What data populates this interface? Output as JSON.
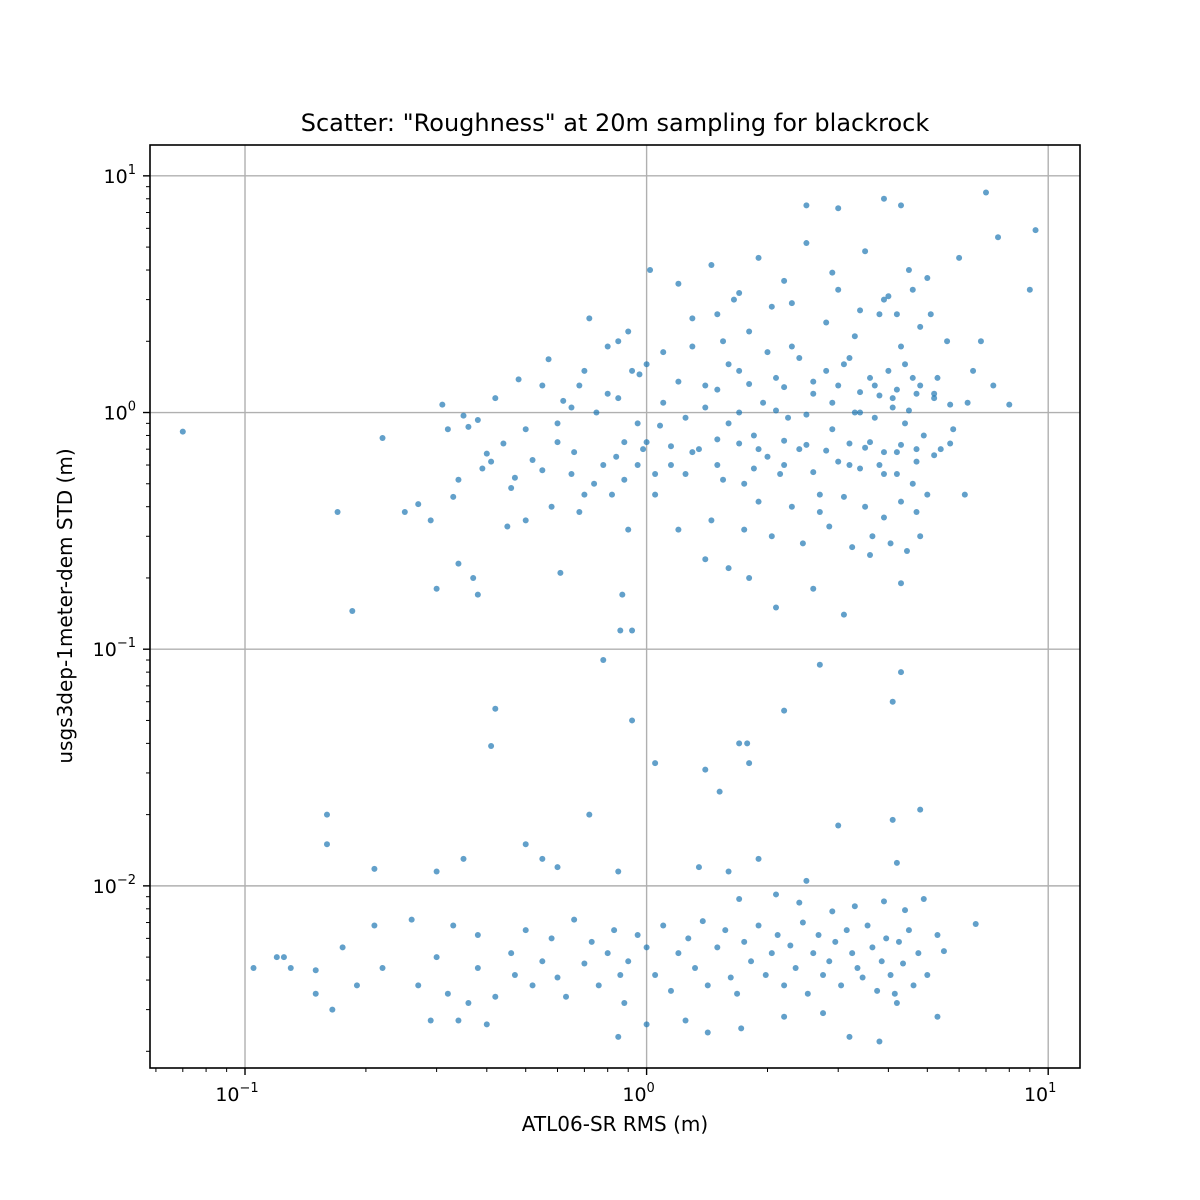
{
  "chart_data": {
    "type": "scatter",
    "title": "Scatter: \"Roughness\" at 20m sampling for blackrock",
    "xlabel": "ATL06-SR RMS (m)",
    "ylabel": "usgs3dep-1meter-dem STD (m)",
    "xscale": "log",
    "yscale": "log",
    "xlim": [
      0.058,
      12
    ],
    "ylim": [
      0.0017,
      13.5
    ],
    "grid": true,
    "marker_color": "#1f77b4",
    "x_ticks": [
      {
        "value": 0.1,
        "base": "10",
        "exp": "−1"
      },
      {
        "value": 1,
        "base": "10",
        "exp": "0"
      },
      {
        "value": 10,
        "base": "10",
        "exp": "1"
      }
    ],
    "y_ticks": [
      {
        "value": 0.01,
        "base": "10",
        "exp": "−2"
      },
      {
        "value": 0.1,
        "base": "10",
        "exp": "−1"
      },
      {
        "value": 1,
        "base": "10",
        "exp": "0"
      },
      {
        "value": 10,
        "base": "10",
        "exp": "1"
      }
    ],
    "points": [
      [
        0.07,
        0.83
      ],
      [
        0.17,
        0.38
      ],
      [
        0.185,
        0.145
      ],
      [
        0.22,
        0.78
      ],
      [
        0.25,
        0.38
      ],
      [
        0.27,
        0.41
      ],
      [
        0.29,
        0.35
      ],
      [
        0.31,
        1.08
      ],
      [
        0.32,
        0.85
      ],
      [
        0.33,
        0.44
      ],
      [
        0.34,
        0.52
      ],
      [
        0.35,
        0.97
      ],
      [
        0.36,
        0.87
      ],
      [
        0.38,
        0.93
      ],
      [
        0.39,
        0.58
      ],
      [
        0.4,
        0.67
      ],
      [
        0.41,
        0.62
      ],
      [
        0.42,
        1.15
      ],
      [
        0.44,
        0.74
      ],
      [
        0.46,
        0.48
      ],
      [
        0.48,
        1.38
      ],
      [
        0.5,
        0.85
      ],
      [
        0.52,
        0.63
      ],
      [
        0.55,
        0.57
      ],
      [
        0.57,
        1.68
      ],
      [
        0.6,
        0.9
      ],
      [
        0.62,
        1.12
      ],
      [
        0.65,
        0.55
      ],
      [
        0.68,
        1.3
      ],
      [
        0.7,
        0.45
      ],
      [
        0.72,
        2.5
      ],
      [
        0.75,
        1.0
      ],
      [
        0.78,
        0.6
      ],
      [
        0.8,
        1.2
      ],
      [
        0.82,
        0.45
      ],
      [
        0.85,
        2.0
      ],
      [
        0.88,
        0.75
      ],
      [
        0.9,
        0.32
      ],
      [
        0.92,
        1.5
      ],
      [
        0.95,
        0.9
      ],
      [
        0.98,
        0.7
      ],
      [
        1.0,
        1.6
      ],
      [
        1.02,
        4.0
      ],
      [
        1.05,
        0.55
      ],
      [
        1.08,
        0.88
      ],
      [
        1.1,
        1.8
      ],
      [
        1.15,
        0.6
      ],
      [
        1.2,
        3.5
      ],
      [
        1.25,
        0.95
      ],
      [
        1.3,
        2.5
      ],
      [
        1.35,
        0.7
      ],
      [
        1.4,
        1.3
      ],
      [
        1.45,
        4.2
      ],
      [
        1.5,
        0.6
      ],
      [
        1.55,
        2.0
      ],
      [
        1.6,
        0.9
      ],
      [
        1.65,
        3.0
      ],
      [
        1.7,
        1.5
      ],
      [
        1.75,
        0.5
      ],
      [
        1.8,
        2.2
      ],
      [
        1.85,
        0.8
      ],
      [
        1.9,
        4.5
      ],
      [
        1.95,
        1.1
      ],
      [
        2.0,
        0.65
      ],
      [
        2.05,
        2.8
      ],
      [
        2.1,
        1.4
      ],
      [
        2.15,
        0.55
      ],
      [
        2.2,
        3.6
      ],
      [
        2.25,
        0.95
      ],
      [
        2.3,
        1.9
      ],
      [
        2.4,
        0.7
      ],
      [
        2.5,
        5.2
      ],
      [
        2.6,
        1.2
      ],
      [
        2.7,
        0.45
      ],
      [
        2.8,
        2.4
      ],
      [
        2.9,
        0.85
      ],
      [
        3.0,
        3.3
      ],
      [
        3.1,
        1.6
      ],
      [
        3.2,
        0.6
      ],
      [
        3.3,
        2.1
      ],
      [
        3.4,
        1.0
      ],
      [
        3.5,
        4.8
      ],
      [
        3.6,
        0.75
      ],
      [
        3.7,
        1.3
      ],
      [
        3.8,
        2.6
      ],
      [
        3.9,
        0.55
      ],
      [
        4.0,
        3.1
      ],
      [
        4.1,
        1.15
      ],
      [
        4.2,
        0.68
      ],
      [
        4.3,
        1.9
      ],
      [
        4.4,
        0.9
      ],
      [
        4.5,
        4.0
      ],
      [
        4.6,
        1.4
      ],
      [
        4.7,
        0.62
      ],
      [
        4.8,
        2.3
      ],
      [
        4.9,
        0.8
      ],
      [
        5.0,
        3.7
      ],
      [
        5.2,
        1.2
      ],
      [
        5.4,
        0.7
      ],
      [
        5.6,
        2.0
      ],
      [
        5.8,
        0.85
      ],
      [
        6.0,
        4.5
      ],
      [
        6.5,
        1.5
      ],
      [
        7.0,
        8.5
      ],
      [
        7.5,
        5.5
      ],
      [
        8.0,
        1.08
      ],
      [
        9.0,
        3.3
      ],
      [
        9.3,
        5.9
      ],
      [
        6.8,
        2.0
      ],
      [
        6.2,
        0.45
      ],
      [
        3.9,
        8.0
      ],
      [
        4.3,
        7.5
      ],
      [
        2.5,
        7.5
      ],
      [
        3.0,
        7.3
      ],
      [
        1.05,
        0.45
      ],
      [
        1.2,
        0.32
      ],
      [
        1.4,
        0.24
      ],
      [
        1.6,
        0.22
      ],
      [
        1.8,
        0.2
      ],
      [
        2.1,
        0.15
      ],
      [
        2.6,
        0.18
      ],
      [
        3.1,
        0.14
      ],
      [
        3.6,
        0.25
      ],
      [
        4.3,
        0.19
      ],
      [
        4.8,
        0.3
      ],
      [
        0.86,
        0.12
      ],
      [
        0.92,
        0.12
      ],
      [
        0.78,
        0.09
      ],
      [
        0.87,
        0.17
      ],
      [
        0.61,
        0.21
      ],
      [
        0.3,
        0.18
      ],
      [
        0.34,
        0.23
      ],
      [
        0.37,
        0.2
      ],
      [
        0.38,
        0.17
      ],
      [
        1.5,
        2.6
      ],
      [
        1.7,
        3.2
      ],
      [
        2.3,
        2.9
      ],
      [
        2.9,
        3.9
      ],
      [
        3.4,
        2.7
      ],
      [
        3.9,
        3.0
      ],
      [
        4.2,
        2.6
      ],
      [
        4.6,
        3.3
      ],
      [
        5.1,
        2.6
      ],
      [
        1.3,
        1.9
      ],
      [
        1.6,
        1.6
      ],
      [
        2.0,
        1.8
      ],
      [
        2.4,
        1.7
      ],
      [
        2.8,
        1.5
      ],
      [
        3.2,
        1.7
      ],
      [
        3.6,
        1.4
      ],
      [
        4.0,
        1.5
      ],
      [
        4.4,
        1.6
      ],
      [
        4.8,
        1.3
      ],
      [
        5.3,
        1.4
      ],
      [
        1.1,
        1.1
      ],
      [
        1.4,
        1.05
      ],
      [
        1.7,
        1.0
      ],
      [
        2.1,
        1.02
      ],
      [
        2.5,
        0.98
      ],
      [
        2.9,
        1.1
      ],
      [
        3.3,
        1.0
      ],
      [
        3.7,
        0.95
      ],
      [
        4.1,
        1.05
      ],
      [
        4.5,
        1.02
      ],
      [
        0.95,
        0.6
      ],
      [
        1.25,
        0.55
      ],
      [
        1.55,
        0.52
      ],
      [
        1.85,
        0.58
      ],
      [
        2.2,
        0.6
      ],
      [
        2.6,
        0.56
      ],
      [
        3.0,
        0.62
      ],
      [
        3.4,
        0.58
      ],
      [
        3.8,
        0.6
      ],
      [
        4.2,
        0.55
      ],
      [
        4.6,
        0.5
      ],
      [
        1.9,
        0.42
      ],
      [
        2.3,
        0.4
      ],
      [
        2.7,
        0.38
      ],
      [
        3.1,
        0.44
      ],
      [
        3.5,
        0.4
      ],
      [
        3.9,
        0.36
      ],
      [
        4.3,
        0.42
      ],
      [
        4.7,
        0.38
      ],
      [
        5.0,
        0.45
      ],
      [
        1.45,
        0.35
      ],
      [
        1.75,
        0.32
      ],
      [
        2.05,
        0.3
      ],
      [
        2.45,
        0.28
      ],
      [
        2.85,
        0.33
      ],
      [
        3.25,
        0.27
      ],
      [
        3.65,
        0.3
      ],
      [
        4.05,
        0.28
      ],
      [
        4.45,
        0.26
      ],
      [
        0.55,
        1.3
      ],
      [
        0.65,
        1.05
      ],
      [
        0.7,
        1.5
      ],
      [
        0.8,
        1.9
      ],
      [
        0.85,
        1.15
      ],
      [
        0.9,
        2.2
      ],
      [
        0.96,
        1.45
      ],
      [
        0.6,
        0.75
      ],
      [
        0.66,
        0.68
      ],
      [
        0.74,
        0.5
      ],
      [
        0.84,
        0.65
      ],
      [
        0.88,
        0.52
      ],
      [
        0.45,
        0.33
      ],
      [
        0.47,
        0.53
      ],
      [
        0.5,
        0.35
      ],
      [
        0.58,
        0.4
      ],
      [
        0.68,
        0.38
      ],
      [
        1.0,
        0.75
      ],
      [
        1.15,
        0.72
      ],
      [
        1.3,
        0.68
      ],
      [
        1.5,
        0.77
      ],
      [
        1.7,
        0.74
      ],
      [
        1.9,
        0.7
      ],
      [
        2.2,
        0.76
      ],
      [
        2.5,
        0.73
      ],
      [
        2.8,
        0.69
      ],
      [
        3.2,
        0.74
      ],
      [
        3.5,
        0.71
      ],
      [
        3.9,
        0.68
      ],
      [
        4.3,
        0.73
      ],
      [
        4.7,
        0.7
      ],
      [
        5.2,
        0.66
      ],
      [
        5.7,
        0.74
      ],
      [
        1.2,
        1.35
      ],
      [
        1.5,
        1.25
      ],
      [
        1.8,
        1.32
      ],
      [
        2.2,
        1.28
      ],
      [
        2.6,
        1.35
      ],
      [
        3.0,
        1.3
      ],
      [
        3.4,
        1.22
      ],
      [
        3.8,
        1.18
      ],
      [
        4.2,
        1.25
      ],
      [
        4.7,
        1.2
      ],
      [
        5.2,
        1.15
      ],
      [
        5.7,
        1.08
      ],
      [
        6.3,
        1.1
      ],
      [
        7.3,
        1.3
      ],
      [
        0.105,
        0.0045
      ],
      [
        0.125,
        0.005
      ],
      [
        0.13,
        0.0045
      ],
      [
        0.15,
        0.0044
      ],
      [
        0.15,
        0.0035
      ],
      [
        0.165,
        0.003
      ],
      [
        0.175,
        0.0055
      ],
      [
        0.19,
        0.0038
      ],
      [
        0.21,
        0.0068
      ],
      [
        0.22,
        0.0045
      ],
      [
        0.26,
        0.0072
      ],
      [
        0.27,
        0.0038
      ],
      [
        0.29,
        0.0027
      ],
      [
        0.3,
        0.005
      ],
      [
        0.32,
        0.0035
      ],
      [
        0.33,
        0.0068
      ],
      [
        0.34,
        0.0027
      ],
      [
        0.36,
        0.0032
      ],
      [
        0.38,
        0.0062
      ],
      [
        0.38,
        0.0045
      ],
      [
        0.4,
        0.0026
      ],
      [
        0.42,
        0.0034
      ],
      [
        0.46,
        0.0052
      ],
      [
        0.47,
        0.0042
      ],
      [
        0.5,
        0.0065
      ],
      [
        0.52,
        0.0038
      ],
      [
        0.55,
        0.0048
      ],
      [
        0.58,
        0.006
      ],
      [
        0.6,
        0.0041
      ],
      [
        0.63,
        0.0034
      ],
      [
        0.66,
        0.0072
      ],
      [
        0.7,
        0.0047
      ],
      [
        0.73,
        0.0058
      ],
      [
        0.76,
        0.0038
      ],
      [
        0.8,
        0.0052
      ],
      [
        0.83,
        0.0065
      ],
      [
        0.86,
        0.0042
      ],
      [
        0.88,
        0.0032
      ],
      [
        0.9,
        0.0048
      ],
      [
        0.95,
        0.0062
      ],
      [
        1.0,
        0.0055
      ],
      [
        1.05,
        0.0042
      ],
      [
        1.1,
        0.0068
      ],
      [
        1.15,
        0.0036
      ],
      [
        1.2,
        0.0052
      ],
      [
        1.27,
        0.006
      ],
      [
        1.32,
        0.0045
      ],
      [
        1.38,
        0.0071
      ],
      [
        1.42,
        0.0038
      ],
      [
        1.5,
        0.0055
      ],
      [
        1.57,
        0.0065
      ],
      [
        1.62,
        0.0041
      ],
      [
        1.68,
        0.0035
      ],
      [
        1.75,
        0.0058
      ],
      [
        1.82,
        0.0048
      ],
      [
        1.9,
        0.0068
      ],
      [
        1.98,
        0.0042
      ],
      [
        2.05,
        0.0052
      ],
      [
        2.12,
        0.0062
      ],
      [
        2.2,
        0.0038
      ],
      [
        2.28,
        0.0056
      ],
      [
        2.35,
        0.0045
      ],
      [
        2.45,
        0.007
      ],
      [
        2.52,
        0.0035
      ],
      [
        2.6,
        0.0052
      ],
      [
        2.68,
        0.0062
      ],
      [
        2.75,
        0.0042
      ],
      [
        2.85,
        0.0048
      ],
      [
        2.95,
        0.0058
      ],
      [
        3.05,
        0.0038
      ],
      [
        3.15,
        0.0065
      ],
      [
        3.25,
        0.0052
      ],
      [
        3.35,
        0.0045
      ],
      [
        3.45,
        0.0041
      ],
      [
        3.55,
        0.0068
      ],
      [
        3.65,
        0.0055
      ],
      [
        3.75,
        0.0036
      ],
      [
        3.85,
        0.0048
      ],
      [
        3.95,
        0.006
      ],
      [
        4.05,
        0.0042
      ],
      [
        4.15,
        0.0035
      ],
      [
        4.25,
        0.0058
      ],
      [
        4.35,
        0.0047
      ],
      [
        4.5,
        0.0065
      ],
      [
        4.62,
        0.0038
      ],
      [
        4.75,
        0.0052
      ],
      [
        5.0,
        0.0042
      ],
      [
        5.3,
        0.0062
      ],
      [
        5.5,
        0.0053
      ],
      [
        6.6,
        0.0069
      ],
      [
        0.85,
        0.0023
      ],
      [
        1.0,
        0.0026
      ],
      [
        1.25,
        0.0027
      ],
      [
        1.42,
        0.0024
      ],
      [
        1.72,
        0.0025
      ],
      [
        2.2,
        0.0028
      ],
      [
        2.75,
        0.0029
      ],
      [
        3.2,
        0.0023
      ],
      [
        3.8,
        0.0022
      ],
      [
        4.2,
        0.0032
      ],
      [
        5.3,
        0.0028
      ],
      [
        0.12,
        0.005
      ],
      [
        1.7,
        0.0088
      ],
      [
        2.1,
        0.0092
      ],
      [
        2.4,
        0.0085
      ],
      [
        2.9,
        0.0078
      ],
      [
        3.3,
        0.0082
      ],
      [
        3.9,
        0.0086
      ],
      [
        4.4,
        0.0079
      ],
      [
        4.9,
        0.0088
      ],
      [
        0.16,
        0.02
      ],
      [
        0.16,
        0.015
      ],
      [
        0.21,
        0.0118
      ],
      [
        0.3,
        0.0115
      ],
      [
        0.35,
        0.013
      ],
      [
        0.5,
        0.015
      ],
      [
        0.55,
        0.013
      ],
      [
        0.6,
        0.012
      ],
      [
        0.72,
        0.02
      ],
      [
        0.85,
        0.0115
      ],
      [
        1.35,
        0.012
      ],
      [
        1.6,
        0.0115
      ],
      [
        1.9,
        0.013
      ],
      [
        2.5,
        0.0105
      ],
      [
        4.2,
        0.0125
      ],
      [
        4.1,
        0.019
      ],
      [
        4.8,
        0.021
      ],
      [
        3.0,
        0.018
      ],
      [
        1.52,
        0.025
      ],
      [
        1.4,
        0.031
      ],
      [
        1.7,
        0.04
      ],
      [
        1.78,
        0.04
      ],
      [
        1.8,
        0.033
      ],
      [
        2.2,
        0.055
      ],
      [
        1.05,
        0.033
      ],
      [
        0.92,
        0.05
      ],
      [
        0.42,
        0.056
      ],
      [
        0.41,
        0.039
      ],
      [
        2.7,
        0.086
      ],
      [
        4.1,
        0.06
      ],
      [
        4.3,
        0.08
      ]
    ]
  }
}
